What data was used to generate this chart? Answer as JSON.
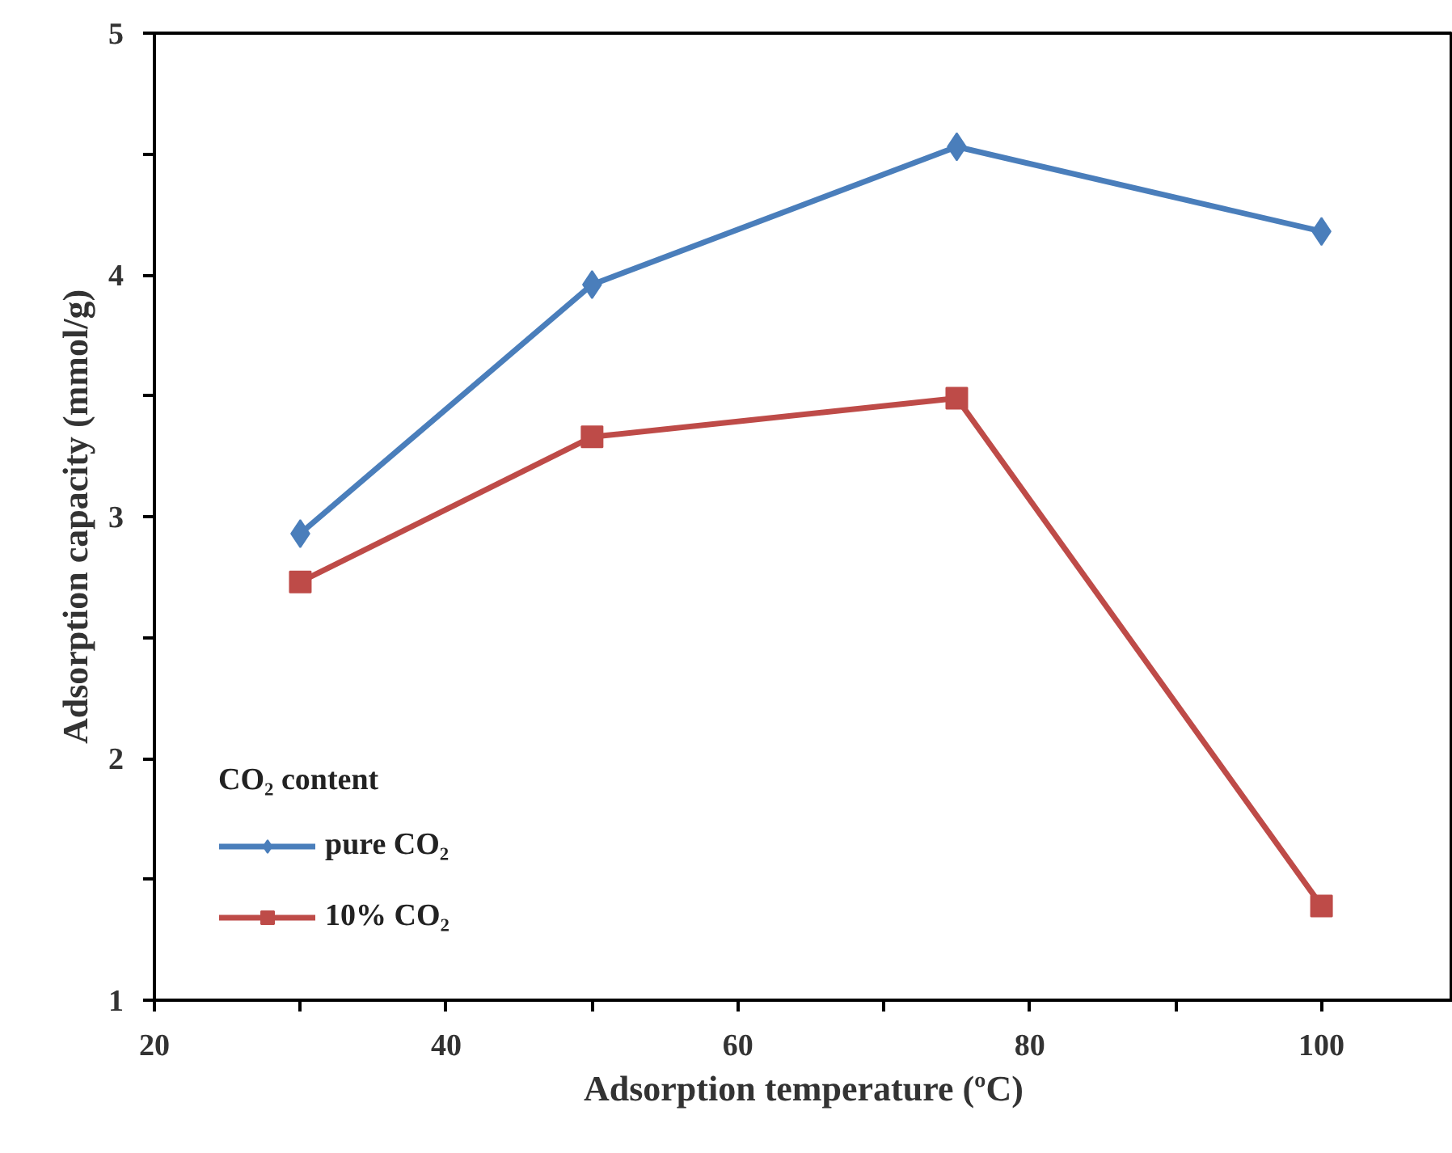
{
  "chart_data": {
    "type": "line",
    "xlabel": "Adsorption temperature (ºC)",
    "ylabel": "Adsorption capacity (mmol/g)",
    "legend_title": "CO₂ content",
    "x": [
      30,
      50,
      75,
      100
    ],
    "series": [
      {
        "name": "pure CO₂",
        "color": "#4a7ebb",
        "values": [
          2.93,
          3.96,
          4.53,
          4.18
        ],
        "marker": "diamond"
      },
      {
        "name": "10% CO₂",
        "color": "#be4b48",
        "values": [
          2.73,
          3.33,
          3.49,
          1.39
        ],
        "marker": "square"
      }
    ],
    "xlim": [
      20,
      109
    ],
    "xticks": [
      20,
      {
        "value": 30,
        "label": null
      },
      40,
      {
        "value": 50,
        "label": null
      },
      60,
      {
        "value": 70,
        "label": null
      },
      80,
      {
        "value": 90,
        "label": null
      },
      100
    ],
    "ylim": [
      1,
      5
    ],
    "yticks": [
      1,
      {
        "value": 1.5,
        "label": null
      },
      2,
      {
        "value": 2.5,
        "label": null
      },
      3,
      {
        "value": 3.5,
        "label": null
      },
      4,
      {
        "value": 4.5,
        "label": null
      },
      5
    ],
    "grid": false,
    "legend": "bottom left",
    "line_style": "solid"
  }
}
